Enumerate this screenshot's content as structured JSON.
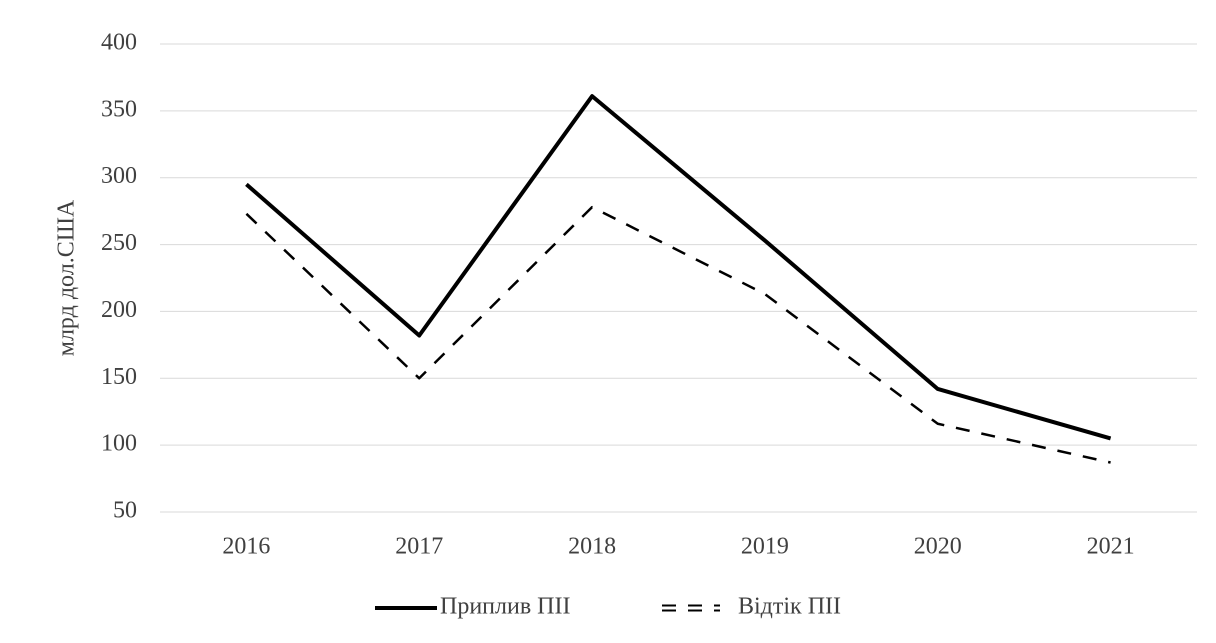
{
  "chart_data": {
    "type": "line",
    "y_label": "млрд дол.США",
    "categories": [
      "2016",
      "2017",
      "2018",
      "2019",
      "2020",
      "2021"
    ],
    "series": [
      {
        "name": "Приплив ПІІ",
        "color": "#000000",
        "style": "solid",
        "values": [
          295,
          182,
          361,
          253,
          142,
          105
        ]
      },
      {
        "name": "Відтік ПІІ",
        "color": "#000000",
        "style": "dashed",
        "values": [
          273,
          150,
          278,
          213,
          116,
          87
        ]
      }
    ],
    "ylim": [
      50,
      400
    ],
    "yticks": [
      50,
      100,
      150,
      200,
      250,
      300,
      350,
      400
    ],
    "grid": true,
    "legend": "bottom"
  }
}
